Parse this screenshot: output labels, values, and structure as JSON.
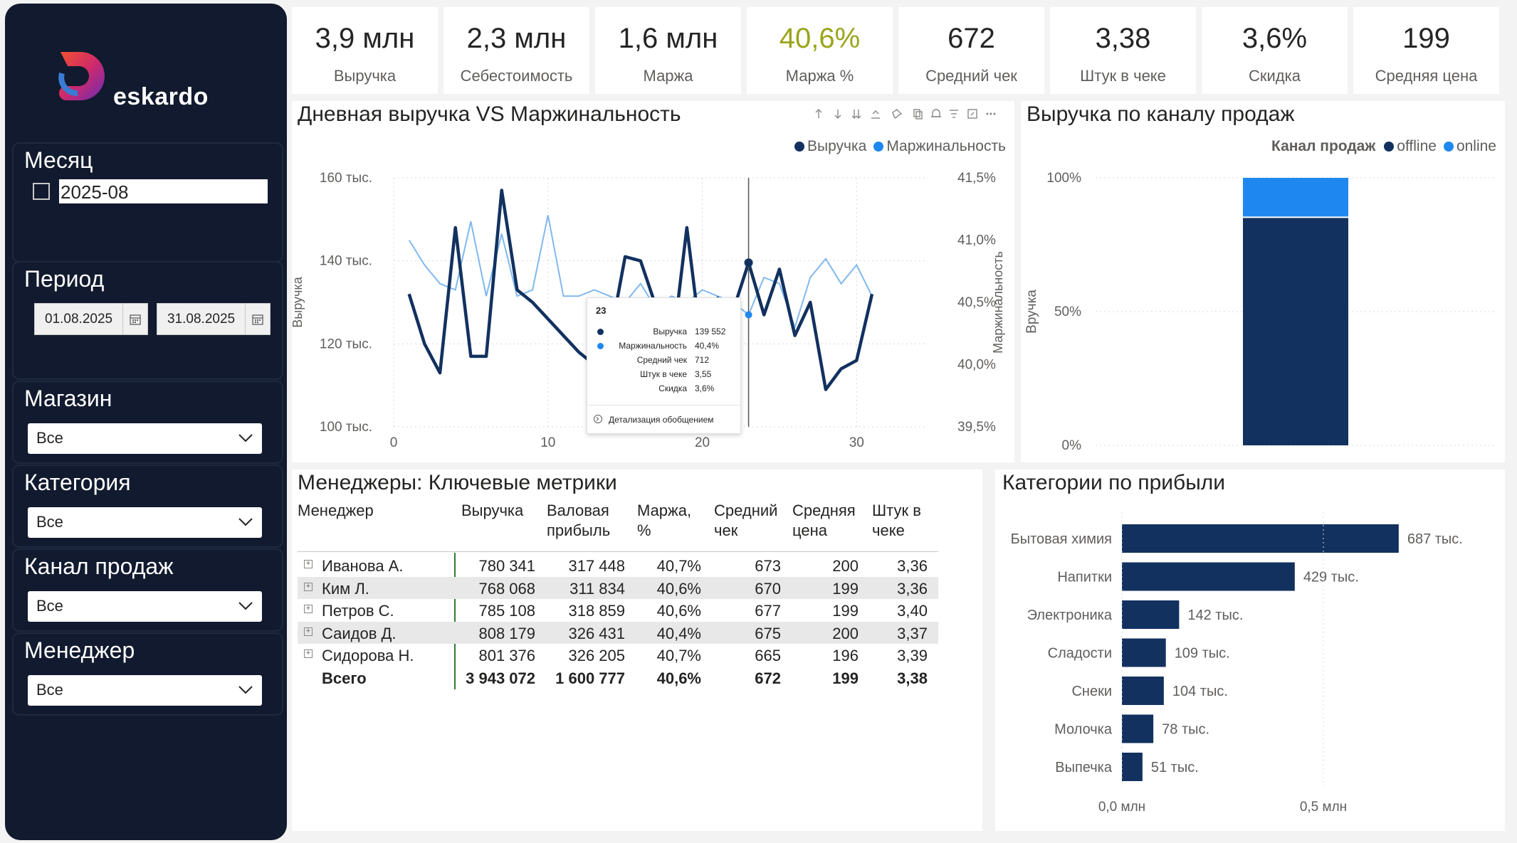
{
  "brand": {
    "name": "eskardo",
    "colors": {
      "navy": "#12315f",
      "blue": "#1f88f0",
      "accent_green": "#9aa41a",
      "sidebar": "#111a2e"
    }
  },
  "slicers": {
    "month": {
      "title": "Месяц",
      "value": "2025-08",
      "checked": false
    },
    "period": {
      "title": "Период",
      "from": "01.08.2025",
      "to": "31.08.2025"
    },
    "store": {
      "title": "Магазин",
      "value": "Все"
    },
    "category": {
      "title": "Категория",
      "value": "Все"
    },
    "channel": {
      "title": "Канал продаж",
      "value": "Все"
    },
    "manager": {
      "title": "Менеджер",
      "value": "Все"
    }
  },
  "kpis": [
    {
      "value": "3,9 млн",
      "label": "Выручка"
    },
    {
      "value": "2,3 млн",
      "label": "Себестоимость"
    },
    {
      "value": "1,6 млн",
      "label": "Маржа"
    },
    {
      "value": "40,6%",
      "label": "Маржа %"
    },
    {
      "value": "672",
      "label": "Средний чек"
    },
    {
      "value": "3,38",
      "label": "Штук в чеке"
    },
    {
      "value": "3,6%",
      "label": "Скидка"
    },
    {
      "value": "199",
      "label": "Средняя цена"
    }
  ],
  "daily_chart": {
    "title": "Дневная выручка VS Маржинальность",
    "legend": [
      "Выручка",
      "Маржинальность"
    ],
    "y_left_label": "Выручка",
    "y_right_label": "Маржинальность",
    "y_left_ticks": [
      "160 тыс.",
      "140 тыс.",
      "120 тыс.",
      "100 тыс."
    ],
    "y_right_ticks": [
      "41,5%",
      "41,0%",
      "40,5%",
      "40,0%",
      "39,5%"
    ],
    "x_ticks": [
      "0",
      "10",
      "20",
      "30"
    ],
    "toolbar_icons": [
      "arrow-up-icon",
      "arrow-down-icon",
      "double-arrow-down-icon",
      "expand-hierarchy-icon",
      "pin-icon",
      "copy-icon",
      "bell-icon",
      "filter-icon",
      "focus-mode-icon",
      "more-options-icon"
    ],
    "tooltip": {
      "title": "23",
      "rows": [
        {
          "label": "Выручка",
          "value": "139 552",
          "marker": "navy"
        },
        {
          "label": "Маржинальность",
          "value": "40,4%",
          "marker": "blue"
        },
        {
          "label": "Средний чек",
          "value": "712"
        },
        {
          "label": "Штук в чеке",
          "value": "3,55"
        },
        {
          "label": "Скидка",
          "value": "3,6%"
        }
      ],
      "drill": "Детализация обобщением"
    }
  },
  "channel_chart": {
    "title": "Выручка по каналу продаж",
    "legend_title": "Канал продаж",
    "legend": [
      "offline",
      "online"
    ],
    "y_label": "Вручка",
    "y_ticks": [
      "100%",
      "50%",
      "0%"
    ]
  },
  "managers_table": {
    "title": "Менеджеры: Ключевые метрики",
    "headers": [
      "Менеджер",
      "Выручка",
      "Валовая прибыль",
      "Маржа, %",
      "Средний чек",
      "Средняя цена",
      "Штук в чеке"
    ],
    "rows": [
      [
        "Иванова А.",
        "780 341",
        "317 448",
        "40,7%",
        "673",
        "200",
        "3,36"
      ],
      [
        "Ким Л.",
        "768 068",
        "311 834",
        "40,6%",
        "670",
        "199",
        "3,36"
      ],
      [
        "Петров С.",
        "785 108",
        "318 859",
        "40,6%",
        "677",
        "199",
        "3,40"
      ],
      [
        "Саидов Д.",
        "808 179",
        "326 431",
        "40,4%",
        "675",
        "200",
        "3,37"
      ],
      [
        "Сидорова Н.",
        "801 376",
        "326 205",
        "40,7%",
        "665",
        "196",
        "3,39"
      ]
    ],
    "total": [
      "Всего",
      "3 943 072",
      "1 600 777",
      "40,6%",
      "672",
      "199",
      "3,38"
    ]
  },
  "chart_data": [
    {
      "type": "line",
      "title": "Дневная выручка VS Маржинальность",
      "xlabel": "",
      "ylabel": "Выручка",
      "y2label": "Маржинальность",
      "x": [
        1,
        2,
        3,
        4,
        5,
        6,
        7,
        8,
        9,
        10,
        11,
        12,
        13,
        14,
        15,
        16,
        17,
        18,
        19,
        20,
        21,
        22,
        23,
        24,
        25,
        26,
        27,
        28,
        29,
        30,
        31
      ],
      "xlim": [
        0,
        34
      ],
      "series": [
        {
          "name": "Выручка",
          "axis": "left",
          "ylim": [
            100000,
            160000
          ],
          "values": [
            132000,
            120000,
            113000,
            148000,
            117000,
            117000,
            157000,
            133000,
            130000,
            126000,
            122000,
            118000,
            115000,
            121000,
            141000,
            140000,
            129000,
            117000,
            148000,
            118000,
            131000,
            128000,
            139552,
            127000,
            138000,
            122000,
            130000,
            109000,
            114000,
            116000,
            132000
          ]
        },
        {
          "name": "Маржинальность",
          "axis": "right",
          "ylim": [
            39.5,
            41.5
          ],
          "values": [
            41.0,
            40.8,
            40.65,
            40.6,
            41.15,
            40.55,
            41.05,
            40.55,
            40.6,
            41.2,
            40.55,
            40.55,
            40.6,
            40.55,
            40.5,
            40.65,
            40.45,
            40.55,
            40.5,
            40.6,
            40.55,
            40.5,
            40.4,
            40.7,
            40.65,
            40.3,
            40.7,
            40.85,
            40.65,
            40.8,
            40.55
          ]
        }
      ]
    },
    {
      "type": "bar",
      "title": "Выручка по каналу продаж",
      "stacked": true,
      "ylabel": "Вручка",
      "ylim": [
        0,
        100
      ],
      "categories": [
        ""
      ],
      "series": [
        {
          "name": "offline",
          "values": [
            85
          ]
        },
        {
          "name": "online",
          "values": [
            15
          ]
        }
      ]
    },
    {
      "type": "bar",
      "orientation": "horizontal",
      "title": "Категории по прибыли",
      "categories": [
        "Бытовая химия",
        "Напитки",
        "Электроника",
        "Сладости",
        "Снеки",
        "Молочка",
        "Выпечка"
      ],
      "values": [
        687000,
        429000,
        142000,
        109000,
        104000,
        78000,
        51000
      ],
      "labels": [
        "687 тыс.",
        "429 тыс.",
        "142 тыс.",
        "109 тыс.",
        "104 тыс.",
        "78 тыс.",
        "51 тыс."
      ],
      "x_ticks": [
        "0,0 млн",
        "0,5 млн"
      ],
      "xlim": [
        0,
        750000
      ]
    }
  ]
}
